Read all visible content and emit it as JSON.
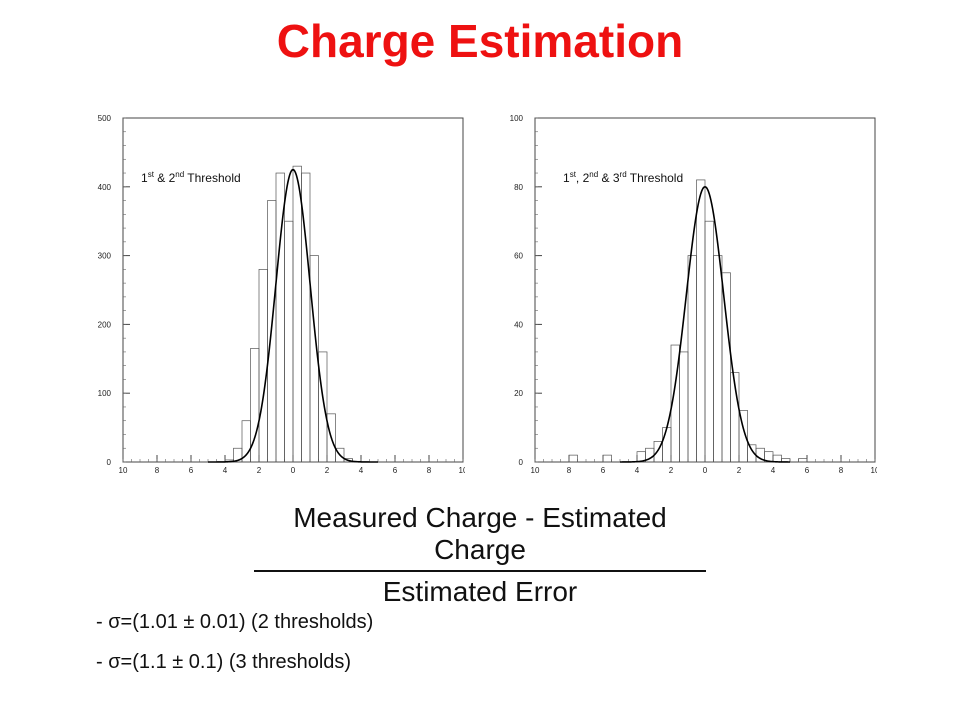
{
  "title": "Charge Estimation",
  "chart_data": [
    {
      "type": "line",
      "annotation": {
        "base": "1",
        "sup1": "st",
        "mid1": " & 2",
        "sup2": "nd",
        "tail": " Threshold"
      },
      "xlim": [
        -10,
        10
      ],
      "ylim": [
        0,
        500
      ],
      "xticks": [
        -10,
        -8,
        -6,
        -4,
        -2,
        0,
        2,
        4,
        6,
        8,
        10
      ],
      "xtick_labels": [
        "10",
        "8",
        "6",
        "4",
        "2",
        "0",
        "2",
        "4",
        "6",
        "8",
        "10"
      ],
      "yticks": [
        0,
        100,
        200,
        300,
        400,
        500
      ],
      "ytick_labels": [
        "0",
        "100",
        "200",
        "300",
        "400",
        "500"
      ],
      "histogram": {
        "x": [
          -4,
          -3.5,
          -3,
          -2.5,
          -2,
          -1.5,
          -1,
          -0.5,
          0,
          0.5,
          1,
          1.5,
          2,
          2.5,
          3,
          3.5
        ],
        "values": [
          3,
          20,
          60,
          165,
          280,
          380,
          420,
          350,
          430,
          420,
          300,
          160,
          70,
          20,
          5,
          1
        ]
      },
      "fit": {
        "function": "gaussian",
        "amplitude": 425,
        "mean": 0.0,
        "sigma": 1.01
      }
    },
    {
      "type": "line",
      "annotation": {
        "base": "1",
        "sup1": "st",
        "mid1": ", 2",
        "sup2": "nd",
        "mid2": " & 3",
        "sup3": "rd",
        "tail": " Threshold"
      },
      "xlim": [
        -10,
        10
      ],
      "ylim": [
        0,
        100
      ],
      "xticks": [
        -10,
        -8,
        -6,
        -4,
        -2,
        0,
        2,
        4,
        6,
        8,
        10
      ],
      "xtick_labels": [
        "10",
        "8",
        "6",
        "4",
        "2",
        "0",
        "2",
        "4",
        "6",
        "8",
        "10"
      ],
      "yticks": [
        0,
        20,
        40,
        60,
        80,
        100
      ],
      "ytick_labels": [
        "0",
        "20",
        "40",
        "60",
        "80",
        "100"
      ],
      "histogram": {
        "x": [
          -8,
          -7.5,
          -6,
          -5.5,
          -4,
          -3.5,
          -3,
          -2.5,
          -2,
          -1.5,
          -1,
          -0.5,
          0,
          0.5,
          1,
          1.5,
          2,
          2.5,
          3,
          3.5,
          4,
          4.5,
          5,
          5.5
        ],
        "values": [
          2,
          0,
          2,
          0,
          3,
          4,
          6,
          10,
          34,
          32,
          60,
          82,
          70,
          60,
          55,
          26,
          15,
          5,
          4,
          3,
          2,
          1,
          0,
          1
        ]
      },
      "fit": {
        "function": "gaussian",
        "amplitude": 80,
        "mean": 0.0,
        "sigma": 1.1
      }
    }
  ],
  "formula": {
    "numerator": "Measured Charge - Estimated Charge",
    "denominator": "Estimated Error"
  },
  "notes": [
    "- σ=(1.01 ± 0.01) (2 thresholds)",
    "- σ=(1.1 ± 0.1) (3 thresholds)"
  ]
}
